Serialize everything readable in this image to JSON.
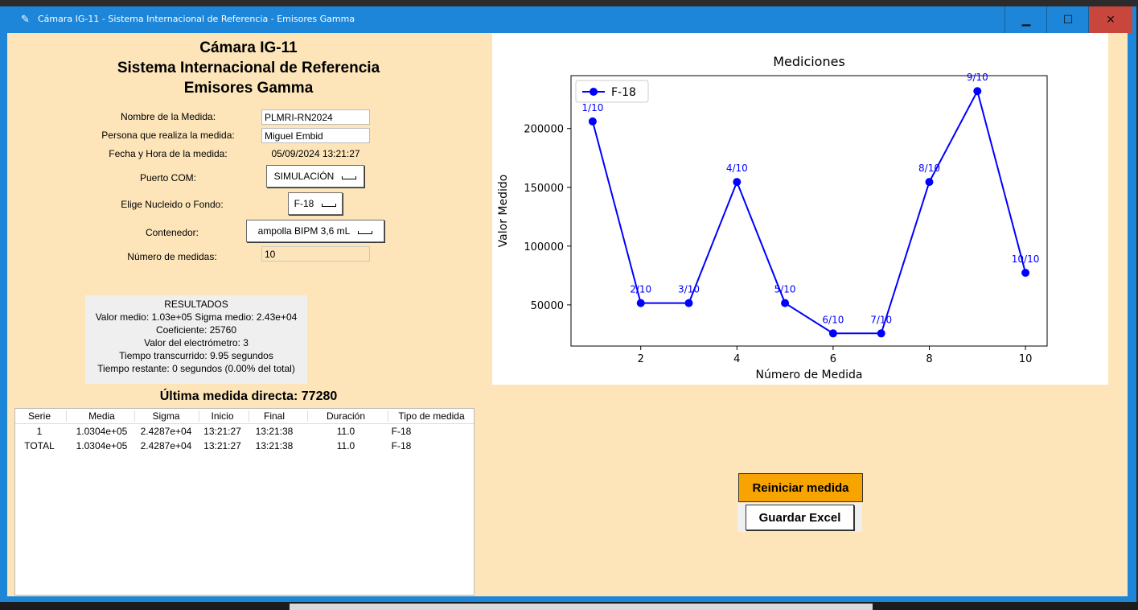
{
  "window": {
    "title": "Cámara IG-11 - Sistema Internacional de Referencia - Emisores Gamma",
    "minimize": "▁",
    "maximize": "☐",
    "close": "✕",
    "title_icon": "feather-icon"
  },
  "header": {
    "line1": "Cámara IG-11",
    "line2": "Sistema Internacional de Referencia",
    "line3": "Emisores Gamma"
  },
  "form": {
    "name_label": "Nombre de la Medida:",
    "name_value": "PLMRI-RN2024",
    "person_label": "Persona que realiza la medida:",
    "person_value": "Miguel Embid",
    "date_label": "Fecha y Hora de la medida:",
    "date_value": "05/09/2024 13:21:27",
    "port_label": "Puerto COM:",
    "port_value": "SIMULACIÓN",
    "nuclide_label": "Elige Nucleido o Fondo:",
    "nuclide_value": "F-18",
    "container_label": "Contenedor:",
    "container_value": "ampolla BIPM  3,6 mL",
    "count_label": "Número de medidas:",
    "count_value": "10"
  },
  "results": {
    "title": "RESULTADOS",
    "line1": "Valor medio: 1.03e+05   Sigma medio: 2.43e+04",
    "line2": "Coeficiente: 25760",
    "line3": "Valor del electrómetro: 3",
    "line4": "Tiempo transcurrido: 9.95 segundos",
    "line5": "Tiempo restante: 0 segundos (0.00% del total)"
  },
  "last_measure": "Última medida directa: 77280",
  "table": {
    "headers": [
      "Serie",
      "Media",
      "Sigma",
      "Inicio",
      "Final",
      "Duración",
      "Tipo de medida"
    ],
    "rows": [
      [
        "1",
        "1.0304e+05",
        "2.4287e+04",
        "13:21:27",
        "13:21:38",
        "11.0",
        "F-18"
      ],
      [
        "TOTAL",
        "1.0304e+05",
        "2.4287e+04",
        "13:21:27",
        "13:21:38",
        "11.0",
        "F-18"
      ]
    ]
  },
  "buttons": {
    "reset": "Reiniciar medida",
    "save": "Guardar Excel"
  },
  "chart_data": {
    "type": "line",
    "title": "Mediciones",
    "xlabel": "Número de Medida",
    "ylabel": "Valor Medido",
    "x": [
      1,
      2,
      3,
      4,
      5,
      6,
      7,
      8,
      9,
      10
    ],
    "series": [
      {
        "name": "F-18",
        "values": [
          206080,
          51520,
          51520,
          154560,
          51520,
          25760,
          25760,
          154560,
          231840,
          77280
        ],
        "color": "#0000ff"
      }
    ],
    "point_labels": [
      "1/10",
      "2/10",
      "3/10",
      "4/10",
      "5/10",
      "6/10",
      "7/10",
      "8/10",
      "9/10",
      "10/10"
    ],
    "xticks": [
      2,
      4,
      6,
      8,
      10
    ],
    "yticks": [
      50000,
      100000,
      150000,
      200000
    ],
    "xlim": [
      0.55,
      10.45
    ],
    "ylim": [
      15000,
      245000
    ],
    "legend": "top-left",
    "grid": false
  }
}
